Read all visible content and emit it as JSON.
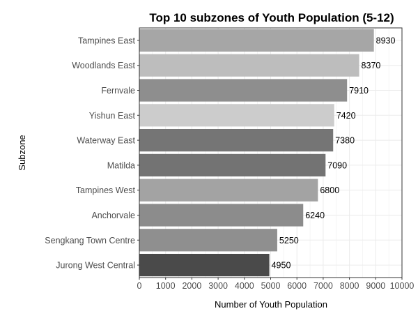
{
  "chart_data": {
    "type": "bar",
    "orientation": "horizontal",
    "title": "Top 10 subzones of Youth Population (5-12)",
    "xlabel": "Number of Youth Population",
    "ylabel": "Subzone",
    "xlim": [
      0,
      10000
    ],
    "xticks": [
      "0",
      "1000",
      "2000",
      "3000",
      "4000",
      "5000",
      "6000",
      "7000",
      "8000",
      "9000",
      "10000"
    ],
    "grid": true,
    "legend": "none",
    "categories": [
      "Tampines East",
      "Woodlands East",
      "Fernvale",
      "Yishun East",
      "Waterway East",
      "Matilda",
      "Tampines West",
      "Anchorvale",
      "Sengkang Town Centre",
      "Jurong West Central"
    ],
    "values": [
      8930,
      8370,
      7910,
      7420,
      7380,
      7090,
      6800,
      6240,
      5250,
      4950
    ],
    "value_labels": [
      "8930",
      "8370",
      "7910",
      "7420",
      "7380",
      "7090",
      "6800",
      "6240",
      "5250",
      "4950"
    ],
    "colors": [
      "#a6a6a6",
      "#bdbdbd",
      "#8e8e8e",
      "#cccccc",
      "#757575",
      "#737373",
      "#a3a3a3",
      "#8c8c8c",
      "#8f8f8f",
      "#4a4a4a"
    ]
  }
}
